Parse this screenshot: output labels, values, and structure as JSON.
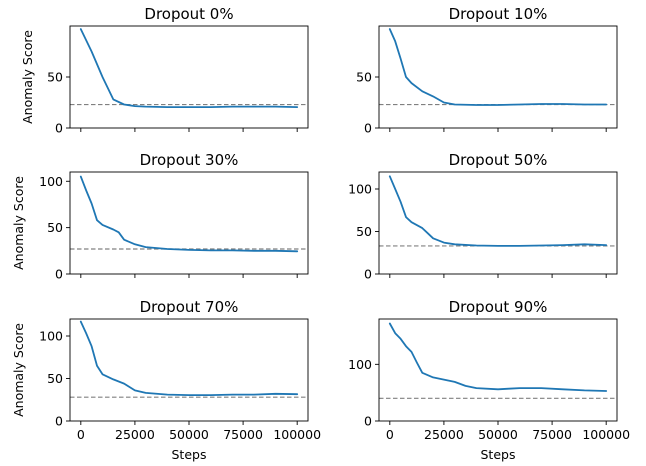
{
  "chart_data": [
    {
      "type": "line",
      "title": "Dropout 0%",
      "xlabel": "",
      "ylabel": "Anomaly Score",
      "xlim": [
        -5000,
        105000
      ],
      "ylim": [
        0,
        100
      ],
      "xticks": [
        0,
        25000,
        50000,
        75000,
        100000
      ],
      "xtick_labels": [],
      "yticks": [
        0,
        50
      ],
      "reference_line": 23,
      "x": [
        0,
        5000,
        10000,
        15000,
        20000,
        25000,
        30000,
        40000,
        50000,
        60000,
        70000,
        80000,
        90000,
        100000
      ],
      "y": [
        97,
        75,
        50,
        28,
        23,
        21.5,
        21,
        20.5,
        20.5,
        20.5,
        21,
        21,
        21,
        20.5
      ]
    },
    {
      "type": "line",
      "title": "Dropout 10%",
      "xlabel": "",
      "ylabel": "",
      "xlim": [
        -5000,
        105000
      ],
      "ylim": [
        0,
        100
      ],
      "xticks": [
        0,
        25000,
        50000,
        75000,
        100000
      ],
      "xtick_labels": [],
      "yticks": [
        0,
        50
      ],
      "reference_line": 23,
      "x": [
        0,
        2500,
        5000,
        7500,
        10000,
        15000,
        20000,
        25000,
        30000,
        40000,
        50000,
        60000,
        70000,
        80000,
        90000,
        100000
      ],
      "y": [
        97,
        85,
        68,
        50,
        44,
        36,
        31,
        25,
        23,
        22.5,
        22.5,
        23,
        23.5,
        23.5,
        23,
        23
      ]
    },
    {
      "type": "line",
      "title": "Dropout 30%",
      "xlabel": "",
      "ylabel": "Anomaly Score",
      "xlim": [
        -5000,
        105000
      ],
      "ylim": [
        0,
        110
      ],
      "xticks": [
        0,
        25000,
        50000,
        75000,
        100000
      ],
      "xtick_labels": [],
      "yticks": [
        0,
        50,
        100
      ],
      "reference_line": 27,
      "x": [
        0,
        2500,
        5000,
        7500,
        10000,
        15000,
        17500,
        20000,
        25000,
        30000,
        40000,
        50000,
        60000,
        70000,
        80000,
        90000,
        100000
      ],
      "y": [
        105,
        90,
        76,
        58,
        53,
        48,
        45,
        37,
        32,
        29,
        27,
        26,
        25.5,
        25.5,
        25,
        25,
        24.5
      ]
    },
    {
      "type": "line",
      "title": "Dropout 50%",
      "xlabel": "",
      "ylabel": "",
      "xlim": [
        -5000,
        105000
      ],
      "ylim": [
        0,
        120
      ],
      "xticks": [
        0,
        25000,
        50000,
        75000,
        100000
      ],
      "xtick_labels": [],
      "yticks": [
        0,
        50,
        100
      ],
      "reference_line": 33,
      "x": [
        0,
        2500,
        5000,
        7500,
        10000,
        15000,
        17500,
        20000,
        25000,
        30000,
        40000,
        50000,
        60000,
        70000,
        80000,
        90000,
        100000
      ],
      "y": [
        115,
        100,
        85,
        67,
        61,
        54,
        48,
        42,
        37,
        35,
        33.5,
        33,
        33,
        33.5,
        34,
        35,
        34
      ]
    },
    {
      "type": "line",
      "title": "Dropout 70%",
      "xlabel": "Steps",
      "ylabel": "Anomaly Score",
      "xlim": [
        -5000,
        105000
      ],
      "ylim": [
        0,
        120
      ],
      "xticks": [
        0,
        25000,
        50000,
        75000,
        100000
      ],
      "xtick_labels": [
        "0",
        "25000",
        "50000",
        "75000",
        "100000"
      ],
      "yticks": [
        0,
        50,
        100
      ],
      "reference_line": 28,
      "x": [
        0,
        2500,
        5000,
        7500,
        10000,
        15000,
        20000,
        22500,
        25000,
        30000,
        40000,
        50000,
        60000,
        70000,
        80000,
        90000,
        100000
      ],
      "y": [
        117,
        103,
        88,
        65,
        55,
        49,
        44,
        40,
        36,
        33,
        31,
        30.5,
        30.5,
        31,
        31,
        32,
        31.5
      ]
    },
    {
      "type": "line",
      "title": "Dropout 90%",
      "xlabel": "Steps",
      "ylabel": "",
      "xlim": [
        -5000,
        105000
      ],
      "ylim": [
        0,
        180
      ],
      "xticks": [
        0,
        25000,
        50000,
        75000,
        100000
      ],
      "xtick_labels": [
        "0",
        "25000",
        "50000",
        "75000",
        "100000"
      ],
      "yticks": [
        0,
        100
      ],
      "reference_line": 40,
      "x": [
        0,
        2500,
        5000,
        7500,
        10000,
        12500,
        15000,
        20000,
        25000,
        30000,
        35000,
        40000,
        50000,
        55000,
        60000,
        70000,
        80000,
        90000,
        100000
      ],
      "y": [
        172,
        155,
        145,
        132,
        122,
        103,
        85,
        77,
        73,
        69,
        62,
        58,
        56,
        57,
        58,
        58,
        56,
        54,
        53
      ]
    }
  ]
}
